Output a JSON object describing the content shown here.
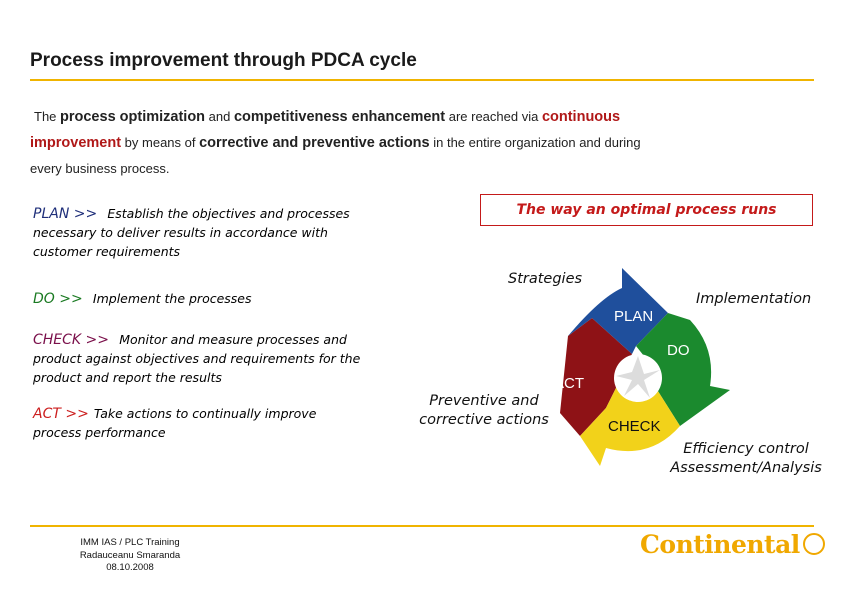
{
  "title": "Process improvement through PDCA cycle",
  "intro": {
    "p1": "The ",
    "b1": "process optimization",
    "p2": " and ",
    "b2": "competitiveness enhancement",
    "p3": " are reached via ",
    "b3a": "continuous",
    "b3b": "improvement",
    "p4": " by means of ",
    "b4": "corrective and preventive actions",
    "p5": " in the entire organization and during",
    "p6": "every business process."
  },
  "steps": {
    "plan": {
      "kw": "PLAN >>",
      "l1": "Establish the objectives and processes",
      "l2": "necessary to deliver results in accordance with",
      "l3": "customer requirements"
    },
    "do": {
      "kw": "DO >>",
      "l1": "Implement the processes"
    },
    "check": {
      "kw": "CHECK >>",
      "l1": "Monitor and measure processes and",
      "l2": "product against objectives and requirements for the",
      "l3": "product and report the results"
    },
    "act": {
      "kw": "ACT >>",
      "l1": "Take actions to continually improve",
      "l2": "process performance"
    }
  },
  "cycle": {
    "heading": "The way an optimal process runs",
    "strategies": "Strategies",
    "implementation": "Implementation",
    "preventive_l1": "Preventive and",
    "preventive_l2": "corrective actions",
    "efficiency_l1": "Efficiency control",
    "efficiency_l2": "Assessment/Analysis",
    "plan": "PLAN",
    "do": "DO",
    "check": "CHECK",
    "act": "ACT",
    "colors": {
      "plan": "#1f4f9c",
      "do": "#1b8a2e",
      "check": "#f2d21a",
      "act": "#8e1216",
      "accent": "#f0b400",
      "heading_red": "#c41a1a"
    }
  },
  "footer": {
    "line1": "IMM IAS / PLC Training",
    "line2": "Radauceanu Smaranda",
    "line3": "08.10.2008"
  },
  "logo": {
    "text": "Continental",
    "icon": "horse-emblem-icon"
  }
}
